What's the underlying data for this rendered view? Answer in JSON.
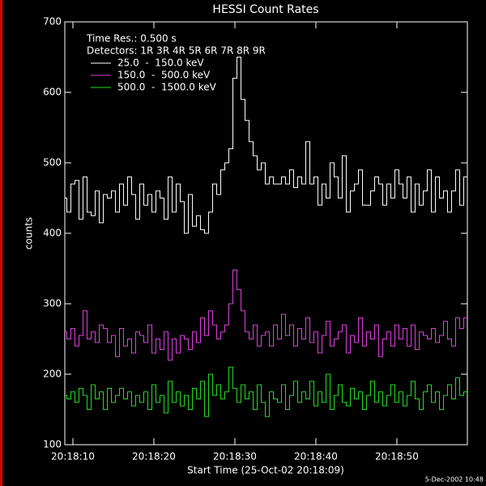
{
  "chart_data": {
    "type": "step",
    "title": "HESSI Count Rates",
    "ylabel": "counts",
    "xlabel": "Start Time (25-Oct-02 20:18:09)",
    "annotations": [
      "Time Res.: 0.500 s",
      "Detectors: 1R 3R 4R 5R 6R 7R 8R 9R"
    ],
    "footer": "5-Dec-2002 10:48",
    "xlim": [
      0,
      49.7
    ],
    "xticks": [
      {
        "value": 1,
        "label": "20:18:10"
      },
      {
        "value": 11,
        "label": "20:18:20"
      },
      {
        "value": 21,
        "label": "20:18:30"
      },
      {
        "value": 31,
        "label": "20:18:40"
      },
      {
        "value": 41,
        "label": "20:18:50"
      }
    ],
    "ylim": [
      100,
      700
    ],
    "yticks": [
      100,
      200,
      300,
      400,
      500,
      600,
      700
    ],
    "x": [
      0,
      0.5,
      1,
      1.5,
      2,
      2.5,
      3,
      3.5,
      4,
      4.5,
      5,
      5.5,
      6,
      6.5,
      7,
      7.5,
      8,
      8.5,
      9,
      9.5,
      10,
      10.5,
      11,
      11.5,
      12,
      12.5,
      13,
      13.5,
      14,
      14.5,
      15,
      15.5,
      16,
      16.5,
      17,
      17.5,
      18,
      18.5,
      19,
      19.5,
      20,
      20.5,
      21,
      21.5,
      22,
      22.5,
      23,
      23.5,
      24,
      24.5,
      25,
      25.5,
      26,
      26.5,
      27,
      27.5,
      28,
      28.5,
      29,
      29.5,
      30,
      30.5,
      31,
      31.5,
      32,
      32.5,
      33,
      33.5,
      34,
      34.5,
      35,
      35.5,
      36,
      36.5,
      37,
      37.5,
      38,
      38.5,
      39,
      39.5,
      40,
      40.5,
      41,
      41.5,
      42,
      42.5,
      43,
      43.5,
      44,
      44.5,
      45,
      45.5,
      46,
      46.5,
      47,
      47.5,
      48,
      48.5,
      49,
      49.5
    ],
    "series": [
      {
        "name": "25.0  -  150.0 keV",
        "color": "#ffffff",
        "values": [
          450,
          430,
          470,
          475,
          420,
          480,
          430,
          425,
          460,
          415,
          455,
          450,
          460,
          430,
          470,
          440,
          480,
          455,
          420,
          470,
          440,
          455,
          430,
          460,
          450,
          420,
          480,
          430,
          470,
          445,
          400,
          455,
          410,
          425,
          405,
          400,
          430,
          470,
          455,
          490,
          500,
          520,
          620,
          650,
          590,
          560,
          530,
          510,
          490,
          500,
          470,
          480,
          470,
          470,
          480,
          470,
          490,
          465,
          480,
          470,
          530,
          470,
          480,
          440,
          470,
          450,
          500,
          480,
          450,
          510,
          430,
          460,
          470,
          490,
          440,
          440,
          460,
          480,
          470,
          440,
          470,
          450,
          490,
          470,
          450,
          480,
          430,
          470,
          440,
          460,
          490,
          430,
          480,
          450,
          460,
          430,
          460,
          490,
          440,
          480
        ]
      },
      {
        "name": "150.0  -  500.0 keV",
        "color": "#e040e0",
        "values": [
          260,
          250,
          265,
          240,
          255,
          290,
          250,
          260,
          245,
          270,
          265,
          245,
          255,
          225,
          265,
          240,
          250,
          230,
          260,
          255,
          245,
          270,
          230,
          250,
          235,
          260,
          220,
          250,
          230,
          255,
          250,
          235,
          260,
          245,
          280,
          255,
          290,
          270,
          250,
          260,
          270,
          300,
          348,
          320,
          290,
          260,
          250,
          270,
          240,
          255,
          260,
          240,
          270,
          250,
          285,
          255,
          270,
          240,
          265,
          250,
          280,
          245,
          260,
          230,
          255,
          275,
          240,
          250,
          260,
          270,
          230,
          255,
          245,
          280,
          240,
          260,
          250,
          270,
          225,
          250,
          260,
          240,
          270,
          250,
          265,
          240,
          270,
          235,
          260,
          255,
          250,
          265,
          245,
          255,
          275,
          250,
          240,
          280,
          265,
          280
        ]
      },
      {
        "name": "500.0  -  1500.0 keV",
        "color": "#20e020",
        "values": [
          170,
          165,
          175,
          160,
          180,
          170,
          150,
          185,
          165,
          175,
          150,
          180,
          160,
          170,
          180,
          165,
          175,
          155,
          170,
          160,
          175,
          150,
          185,
          160,
          170,
          145,
          190,
          160,
          175,
          155,
          170,
          150,
          180,
          165,
          190,
          140,
          200,
          170,
          185,
          165,
          175,
          210,
          180,
          160,
          185,
          165,
          175,
          150,
          185,
          160,
          140,
          175,
          165,
          160,
          185,
          150,
          170,
          190,
          160,
          175,
          165,
          190,
          155,
          175,
          160,
          200,
          150,
          170,
          185,
          160,
          155,
          180,
          165,
          175,
          150,
          170,
          190,
          160,
          175,
          155,
          170,
          185,
          160,
          175,
          155,
          170,
          190,
          165,
          150,
          175,
          185,
          160,
          175,
          150,
          170,
          185,
          165,
          195,
          170,
          175
        ]
      }
    ]
  }
}
